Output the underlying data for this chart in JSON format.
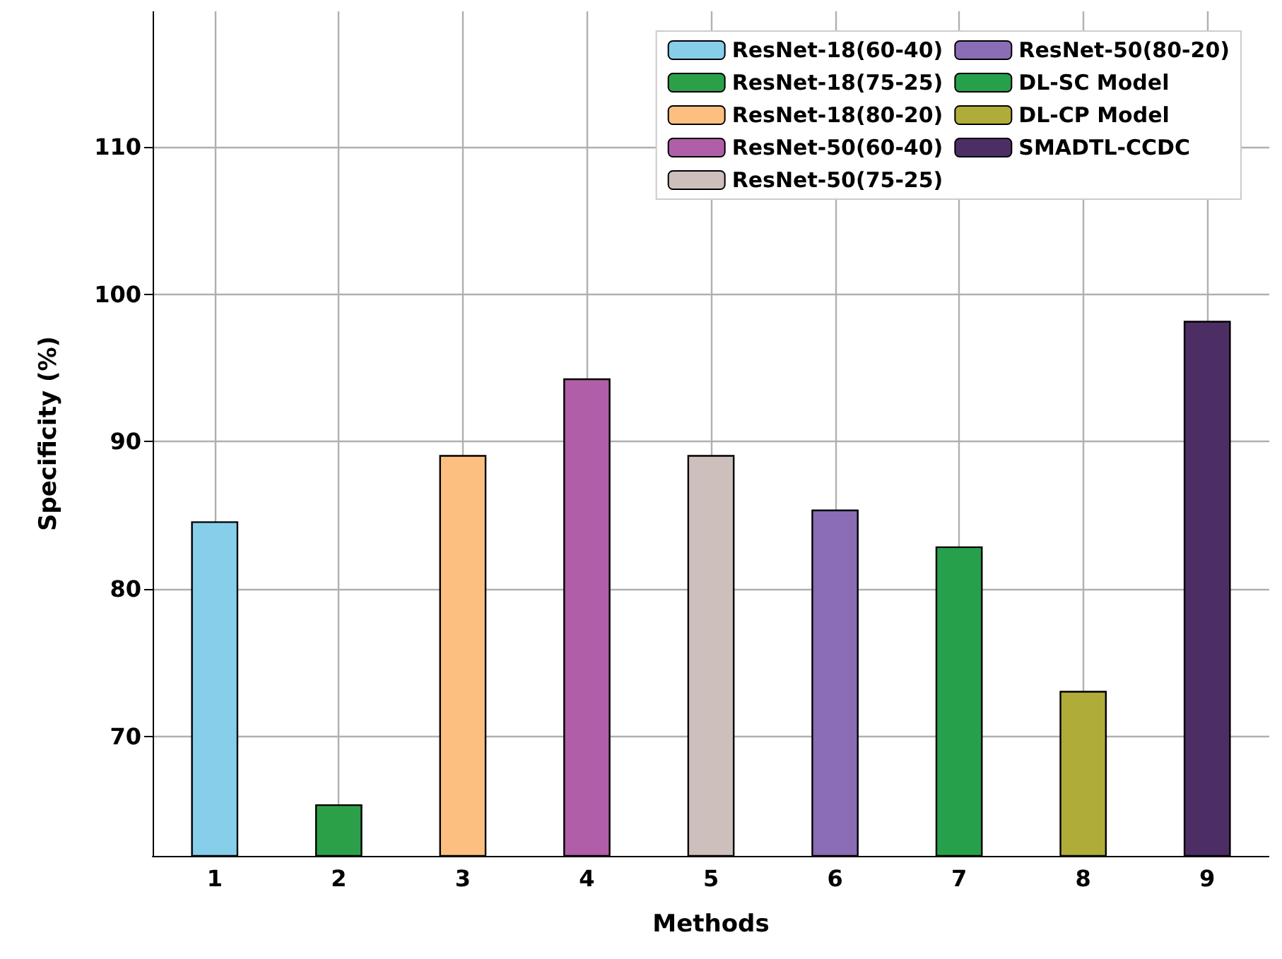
{
  "chart_data": {
    "type": "bar",
    "xlabel": "Methods",
    "ylabel": "Specificity (%)",
    "categories": [
      "1",
      "2",
      "3",
      "4",
      "5",
      "6",
      "7",
      "8",
      "9"
    ],
    "series": [
      {
        "name": "ResNet-18(60-40)",
        "color": "#87ceeb",
        "values": [
          84.6,
          null,
          null,
          null,
          null,
          null,
          null,
          null,
          null
        ]
      },
      {
        "name": "ResNet-18(75-25)",
        "color": "#2ca048",
        "values": [
          null,
          65.4,
          null,
          null,
          null,
          null,
          null,
          null,
          null
        ]
      },
      {
        "name": "ResNet-18(80-20)",
        "color": "#fdbf80",
        "values": [
          null,
          null,
          89.1,
          null,
          null,
          null,
          null,
          null,
          null
        ]
      },
      {
        "name": "ResNet-50(60-40)",
        "color": "#b05ea8",
        "values": [
          null,
          null,
          null,
          94.3,
          null,
          null,
          null,
          null,
          null
        ]
      },
      {
        "name": "ResNet-50(75-25)",
        "color": "#cdbfbb",
        "values": [
          null,
          null,
          null,
          null,
          89.1,
          null,
          null,
          null,
          null
        ]
      },
      {
        "name": "ResNet-50(80-20)",
        "color": "#8a6db4",
        "values": [
          null,
          null,
          null,
          null,
          null,
          85.4,
          null,
          null,
          null
        ]
      },
      {
        "name": "DL-SC Model",
        "color": "#26a04a",
        "values": [
          null,
          null,
          null,
          null,
          null,
          null,
          82.9,
          null,
          null
        ]
      },
      {
        "name": "DL-CP Model",
        "color": "#b0ac3a",
        "values": [
          null,
          null,
          null,
          null,
          null,
          null,
          null,
          73.1,
          null
        ]
      },
      {
        "name": "SMADTL-CCDC",
        "color": "#4d2e64",
        "values": [
          null,
          null,
          null,
          null,
          null,
          null,
          null,
          null,
          98.2
        ]
      }
    ],
    "stacked": true,
    "ylim": [
      61.9,
      119.2
    ],
    "yticks": [
      70,
      80,
      90,
      100,
      110
    ],
    "grid": true,
    "legend": "top right"
  }
}
